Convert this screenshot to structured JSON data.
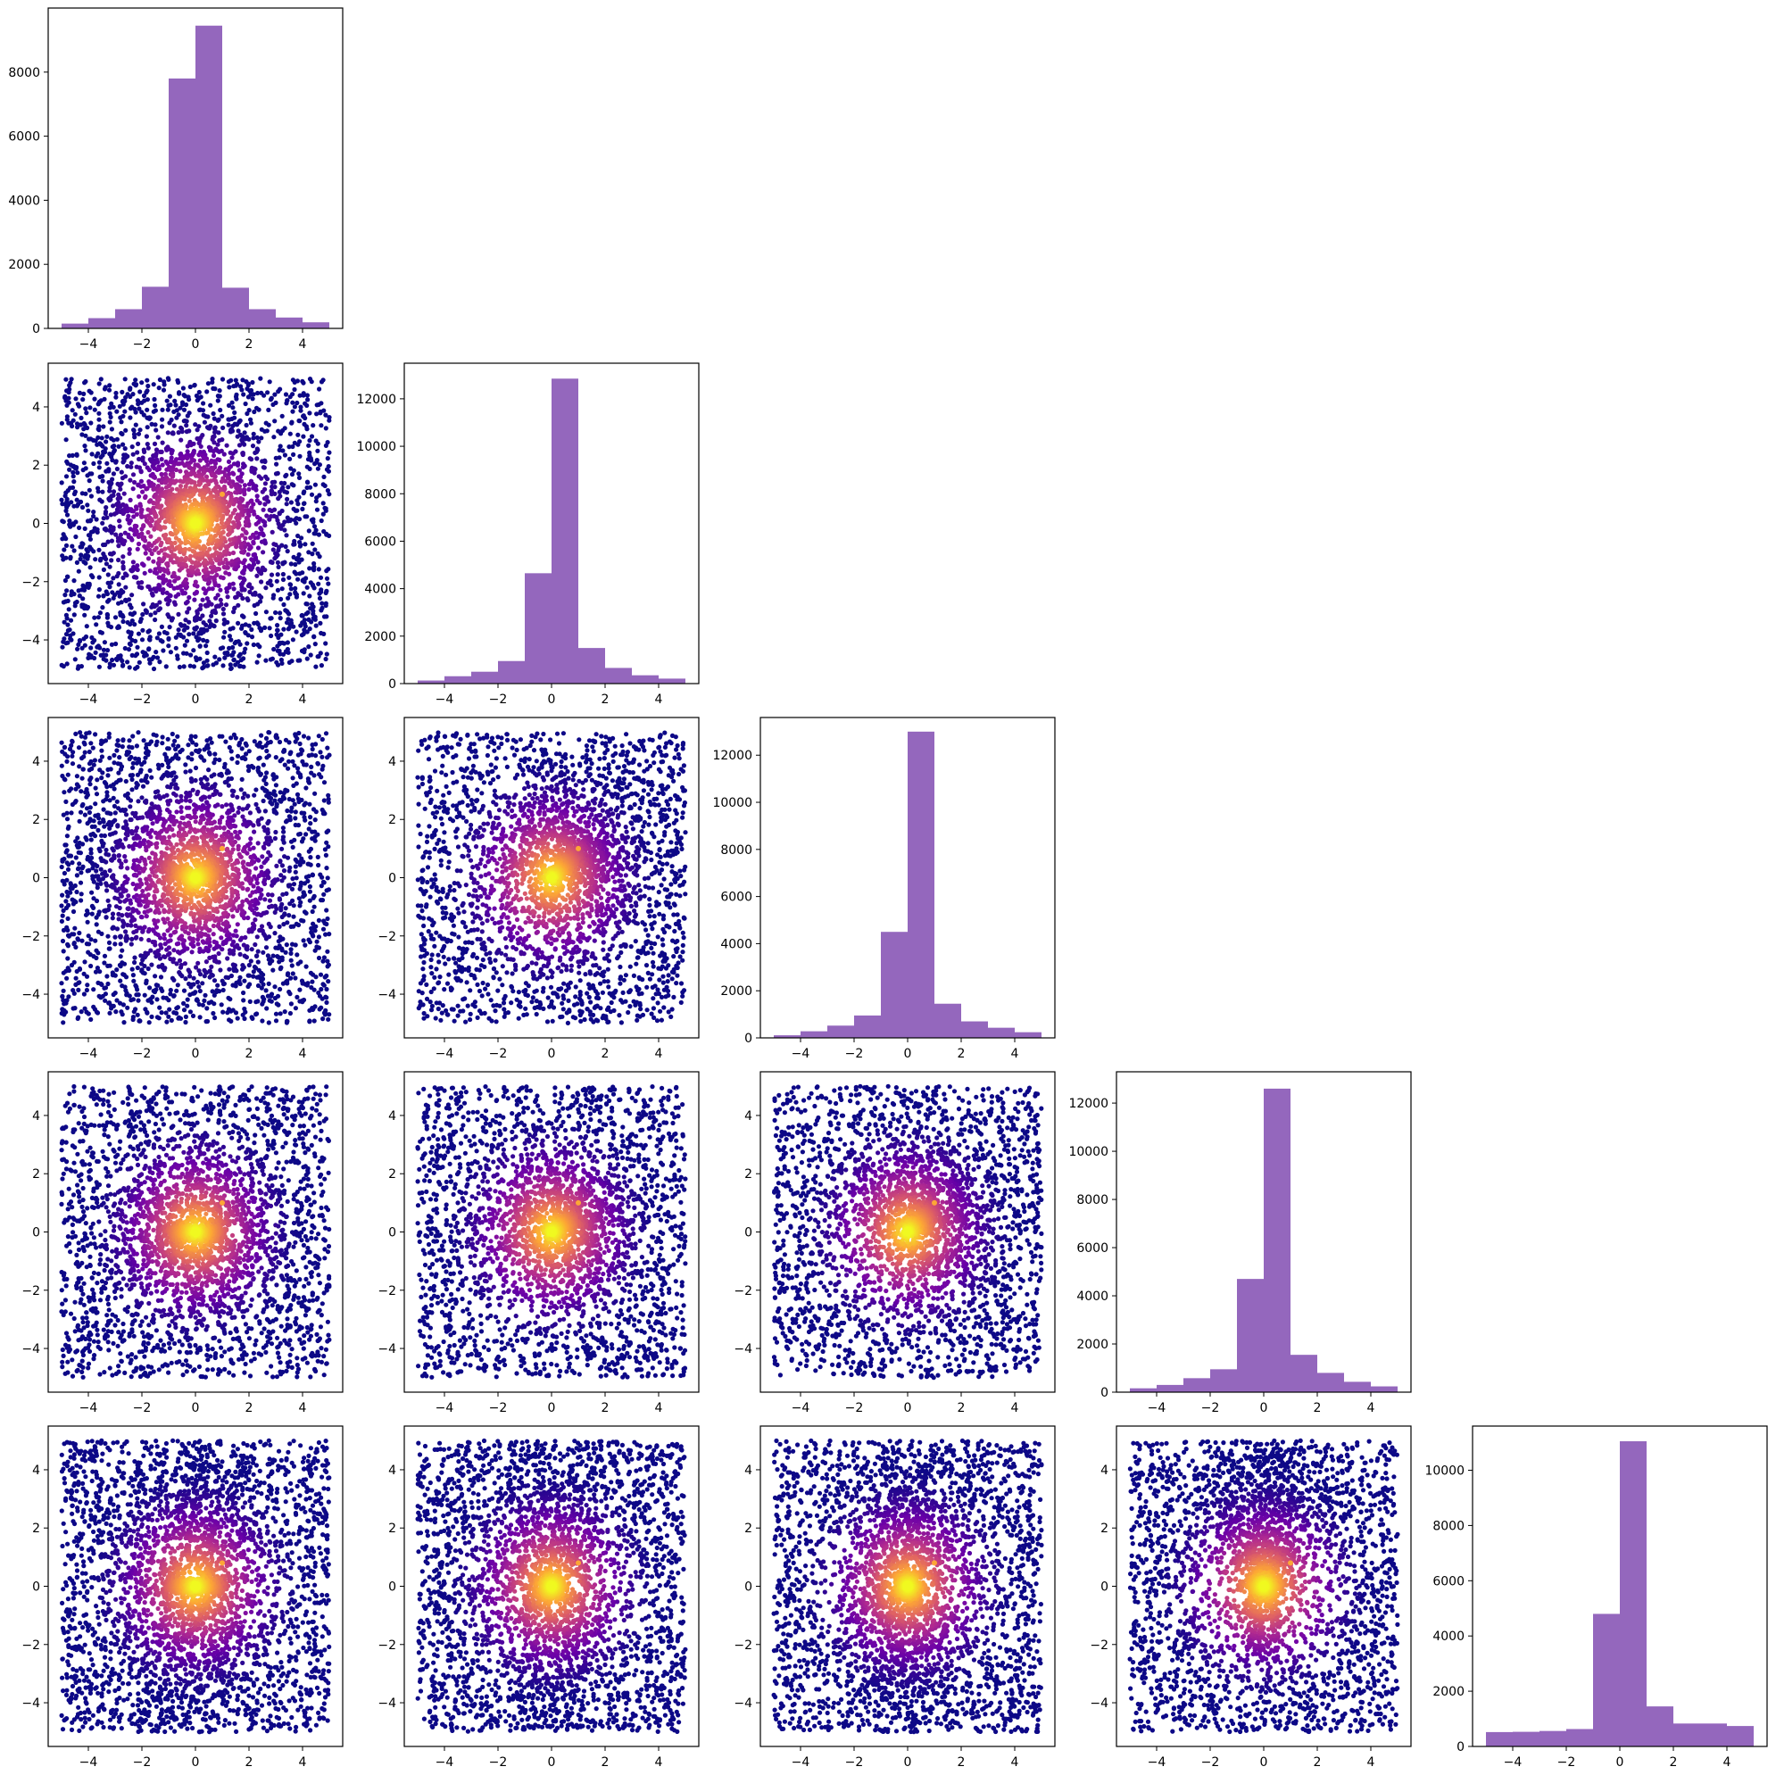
{
  "figure": {
    "bins": [
      -5,
      -4,
      -3,
      -2,
      -1,
      0,
      1,
      2,
      3,
      4,
      5
    ],
    "hist_color": "#9467bd",
    "colormap": [
      "#0d0887",
      "#6a00a8",
      "#b12a90",
      "#e16462",
      "#fca636",
      "#f0f921"
    ]
  },
  "chart_data": [
    {
      "type": "bar",
      "panel": "hist-1",
      "categories": [
        "-5–-4",
        "-4–-3",
        "-3–-2",
        "-2–-1",
        "-1–0",
        "0–1",
        "1–2",
        "2–3",
        "3–4",
        "4–5"
      ],
      "values": [
        150,
        320,
        600,
        1300,
        7800,
        9450,
        1270,
        600,
        340,
        190
      ],
      "ylim": [
        0,
        10000
      ],
      "yticks": [
        "0",
        "2000",
        "4000",
        "6000",
        "8000"
      ],
      "xticks": [
        "−4",
        "−2",
        "0",
        "2",
        "4"
      ]
    },
    {
      "type": "bar",
      "panel": "hist-2",
      "categories": [
        "-5–-4",
        "-4–-3",
        "-3–-2",
        "-2–-1",
        "-1–0",
        "0–1",
        "1–2",
        "2–3",
        "3–4",
        "4–5"
      ],
      "values": [
        130,
        310,
        500,
        950,
        4650,
        12850,
        1500,
        660,
        350,
        210
      ],
      "ylim": [
        0,
        13500
      ],
      "yticks": [
        "0",
        "2000",
        "4000",
        "6000",
        "8000",
        "10000",
        "12000"
      ],
      "xticks": [
        "−4",
        "−2",
        "0",
        "2",
        "4"
      ]
    },
    {
      "type": "bar",
      "panel": "hist-3",
      "categories": [
        "-5–-4",
        "-4–-3",
        "-3–-2",
        "-2–-1",
        "-1–0",
        "0–1",
        "1–2",
        "2–3",
        "3–4",
        "4–5"
      ],
      "values": [
        110,
        280,
        520,
        950,
        4500,
        13000,
        1450,
        700,
        430,
        240
      ],
      "ylim": [
        0,
        13600
      ],
      "yticks": [
        "0",
        "2000",
        "4000",
        "6000",
        "8000",
        "10000",
        "12000"
      ],
      "xticks": [
        "−4",
        "−2",
        "0",
        "2",
        "4"
      ]
    },
    {
      "type": "bar",
      "panel": "hist-4",
      "categories": [
        "-5–-4",
        "-4–-3",
        "-3–-2",
        "-2–-1",
        "-1–0",
        "0–1",
        "1–2",
        "2–3",
        "3–4",
        "4–5"
      ],
      "values": [
        160,
        300,
        580,
        950,
        4700,
        12600,
        1550,
        800,
        430,
        240
      ],
      "ylim": [
        0,
        13300
      ],
      "yticks": [
        "0",
        "2000",
        "4000",
        "6000",
        "8000",
        "10000",
        "12000"
      ],
      "xticks": [
        "−4",
        "−2",
        "0",
        "2",
        "4"
      ]
    },
    {
      "type": "bar",
      "panel": "hist-5",
      "categories": [
        "-5–-4",
        "-4–-3",
        "-3–-2",
        "-2–-1",
        "-1–0",
        "0–1",
        "1–2",
        "2–3",
        "3–4",
        "4–5"
      ],
      "values": [
        520,
        530,
        560,
        630,
        4800,
        11050,
        1450,
        830,
        830,
        740
      ],
      "ylim": [
        0,
        11600
      ],
      "yticks": [
        "0",
        "2000",
        "4000",
        "6000",
        "8000",
        "10000"
      ],
      "xticks": [
        "−4",
        "−2",
        "0",
        "2",
        "4"
      ]
    },
    {
      "type": "scatter",
      "panel": "scatter-2-1",
      "xlim": [
        -5.5,
        5.5
      ],
      "ylim": [
        -5.5,
        5.5
      ],
      "xticks": [
        "−4",
        "−2",
        "0",
        "2",
        "4"
      ],
      "yticks": [
        "−4",
        "−2",
        "0",
        "2",
        "4"
      ],
      "curve": "parabola",
      "highlight": [
        1,
        1
      ],
      "points": 3500
    },
    {
      "type": "scatter",
      "panel": "scatter-3-1",
      "xlim": [
        -5.5,
        5.5
      ],
      "ylim": [
        -5.5,
        5.5
      ],
      "xticks": [
        "−4",
        "−2",
        "0",
        "2",
        "4"
      ],
      "yticks": [
        "−4",
        "−2",
        "0",
        "2",
        "4"
      ],
      "curve": "flat-parabola",
      "highlight": [
        1,
        1
      ],
      "points": 3500
    },
    {
      "type": "scatter",
      "panel": "scatter-3-2",
      "xlim": [
        -5.5,
        5.5
      ],
      "ylim": [
        -5.5,
        5.5
      ],
      "xticks": [
        "−4",
        "−2",
        "0",
        "2",
        "4"
      ],
      "yticks": [
        "−4",
        "−2",
        "0",
        "2",
        "4"
      ],
      "curve": "diagonal",
      "highlight": [
        1,
        1
      ],
      "points": 3500
    },
    {
      "type": "scatter",
      "panel": "scatter-4-1",
      "xlim": [
        -5.5,
        5.5
      ],
      "ylim": [
        -5.5,
        5.5
      ],
      "xticks": [
        "−4",
        "−2",
        "0",
        "2",
        "4"
      ],
      "yticks": [
        "−4",
        "−2",
        "0",
        "2",
        "4"
      ],
      "curve": "horizontal",
      "highlight": [
        1,
        1
      ],
      "points": 3500
    },
    {
      "type": "scatter",
      "panel": "scatter-4-2",
      "xlim": [
        -5.5,
        5.5
      ],
      "ylim": [
        -5.5,
        5.5
      ],
      "xticks": [
        "−4",
        "−2",
        "0",
        "2",
        "4"
      ],
      "yticks": [
        "−4",
        "−2",
        "0",
        "2",
        "4"
      ],
      "curve": "short-diagonal",
      "highlight": [
        1,
        1
      ],
      "points": 3500
    },
    {
      "type": "scatter",
      "panel": "scatter-4-3",
      "xlim": [
        -5.5,
        5.5
      ],
      "ylim": [
        -5.5,
        5.5
      ],
      "xticks": [
        "−4",
        "−2",
        "0",
        "2",
        "4"
      ],
      "yticks": [
        "−4",
        "−2",
        "0",
        "2",
        "4"
      ],
      "curve": "diagonal",
      "highlight": [
        1,
        1
      ],
      "points": 3500
    },
    {
      "type": "scatter",
      "panel": "scatter-5-1",
      "xlim": [
        -5.5,
        5.5
      ],
      "ylim": [
        -5.5,
        5.5
      ],
      "xticks": [
        "−4",
        "−2",
        "0",
        "2",
        "4"
      ],
      "yticks": [
        "−4",
        "−2",
        "0",
        "2",
        "4"
      ],
      "curve": "horizontal",
      "highlight": [
        1,
        0.8
      ],
      "points": 4000
    },
    {
      "type": "scatter",
      "panel": "scatter-5-2",
      "xlim": [
        -5.5,
        5.5
      ],
      "ylim": [
        -5.5,
        5.5
      ],
      "xticks": [
        "−4",
        "−2",
        "0",
        "2",
        "4"
      ],
      "yticks": [
        "−4",
        "−2",
        "0",
        "2",
        "4"
      ],
      "curve": "blob",
      "highlight": [
        1,
        0.8
      ],
      "points": 4000
    },
    {
      "type": "scatter",
      "panel": "scatter-5-3",
      "xlim": [
        -5.5,
        5.5
      ],
      "ylim": [
        -5.5,
        5.5
      ],
      "xticks": [
        "−4",
        "−2",
        "0",
        "2",
        "4"
      ],
      "yticks": [
        "−4",
        "−2",
        "0",
        "2",
        "4"
      ],
      "curve": "blob",
      "highlight": [
        1,
        0.8
      ],
      "points": 4000
    },
    {
      "type": "scatter",
      "panel": "scatter-5-4",
      "xlim": [
        -5.5,
        5.5
      ],
      "ylim": [
        -5.5,
        5.5
      ],
      "xticks": [
        "−4",
        "−2",
        "0",
        "2",
        "4"
      ],
      "yticks": [
        "−4",
        "−2",
        "0",
        "2",
        "4"
      ],
      "curve": "v-shape",
      "highlight": [
        1,
        0.8
      ],
      "points": 4000
    }
  ]
}
